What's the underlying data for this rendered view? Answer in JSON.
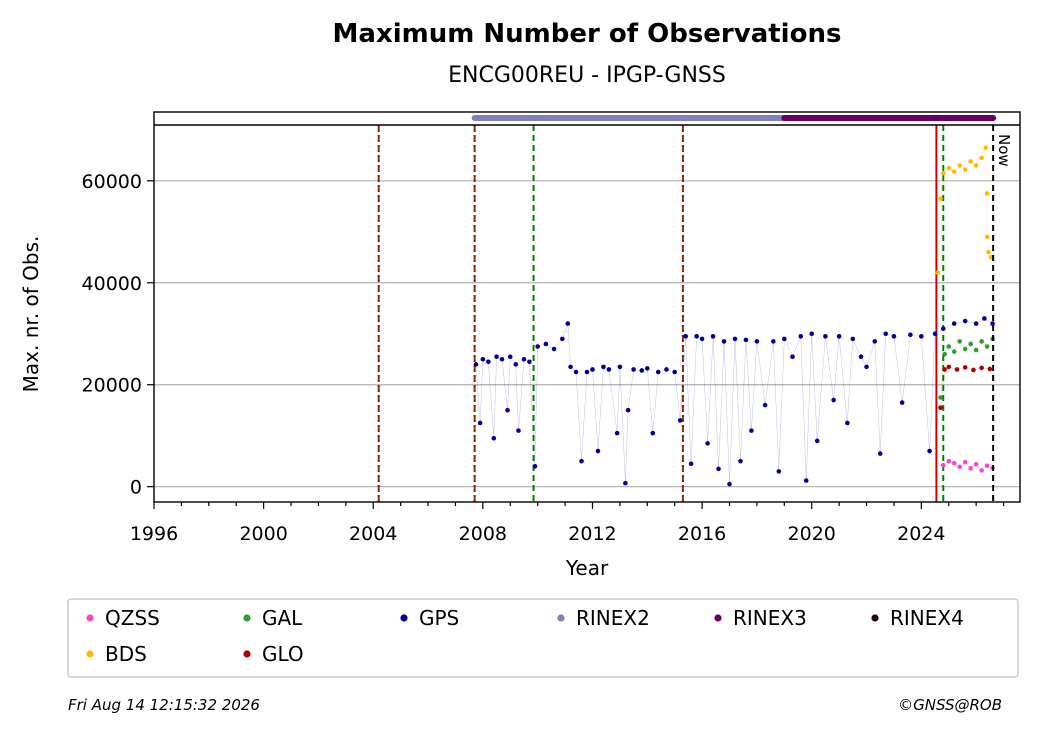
{
  "chart_data": {
    "type": "scatter",
    "title": "Maximum Number of Observations",
    "subtitle": "ENCG00REU - IPGP-GNSS",
    "xlabel": "Year",
    "ylabel": "Max. nr. of Obs.",
    "xlim": [
      1996,
      2027.6
    ],
    "ylim": [
      -3000,
      73500
    ],
    "xticks": [
      1996,
      2000,
      2004,
      2008,
      2012,
      2016,
      2020,
      2024
    ],
    "yticks": [
      0,
      20000,
      40000,
      60000
    ],
    "grid": true,
    "legend_position": "bottom",
    "now_label": "Now",
    "now_x": 2026.62,
    "event_lines": [
      {
        "x": 2004.2,
        "color": "#008000",
        "style": "dashed"
      },
      {
        "x": 2004.2,
        "color": "#cc0000",
        "style": "dotted"
      },
      {
        "x": 2007.7,
        "color": "#008000",
        "style": "dashed"
      },
      {
        "x": 2007.7,
        "color": "#cc0000",
        "style": "dotted"
      },
      {
        "x": 2009.85,
        "color": "#008000",
        "style": "dashed"
      },
      {
        "x": 2015.3,
        "color": "#008000",
        "style": "dashed"
      },
      {
        "x": 2015.3,
        "color": "#cc0000",
        "style": "dotted"
      },
      {
        "x": 2024.55,
        "color": "#cc0000",
        "style": "solid"
      },
      {
        "x": 2024.8,
        "color": "#008000",
        "style": "dashed"
      }
    ],
    "rinex_bars": [
      {
        "name": "RINEX2",
        "start": 2007.7,
        "end": 2019.0,
        "color": "#8080c0"
      },
      {
        "name": "RINEX3",
        "start": 2019.0,
        "end": 2026.62,
        "color": "#660066"
      }
    ],
    "series": [
      {
        "name": "QZSS",
        "color": "#ff44cc",
        "points": [
          [
            2024.8,
            4200
          ],
          [
            2025.0,
            5000
          ],
          [
            2025.2,
            4600
          ],
          [
            2025.4,
            3900
          ],
          [
            2025.6,
            4800
          ],
          [
            2025.8,
            3600
          ],
          [
            2026.0,
            4400
          ],
          [
            2026.2,
            3200
          ],
          [
            2026.4,
            4100
          ],
          [
            2026.6,
            3700
          ]
        ]
      },
      {
        "name": "BDS",
        "color": "#ffbb00",
        "points": [
          [
            2024.6,
            42000
          ],
          [
            2024.7,
            56500
          ],
          [
            2024.8,
            61500
          ],
          [
            2025.0,
            62500
          ],
          [
            2025.2,
            61800
          ],
          [
            2025.4,
            63000
          ],
          [
            2025.6,
            62200
          ],
          [
            2025.8,
            63800
          ],
          [
            2026.0,
            63000
          ],
          [
            2026.2,
            64500
          ],
          [
            2026.35,
            66500
          ],
          [
            2026.4,
            57500
          ],
          [
            2026.4,
            49000
          ],
          [
            2026.45,
            46000
          ],
          [
            2026.55,
            45000
          ]
        ]
      },
      {
        "name": "GAL",
        "color": "#339933",
        "points": [
          [
            2024.7,
            17500
          ],
          [
            2024.85,
            26000
          ],
          [
            2025.0,
            27500
          ],
          [
            2025.2,
            26500
          ],
          [
            2025.4,
            28500
          ],
          [
            2025.6,
            27000
          ],
          [
            2025.8,
            28000
          ],
          [
            2026.0,
            26800
          ],
          [
            2026.2,
            28500
          ],
          [
            2026.4,
            27500
          ],
          [
            2026.6,
            29000
          ]
        ]
      },
      {
        "name": "GLO",
        "color": "#aa0000",
        "points": [
          [
            2024.7,
            15500
          ],
          [
            2024.85,
            23000
          ],
          [
            2025.0,
            23500
          ],
          [
            2025.3,
            23000
          ],
          [
            2025.6,
            23400
          ],
          [
            2025.9,
            22900
          ],
          [
            2026.2,
            23300
          ],
          [
            2026.5,
            23100
          ]
        ]
      },
      {
        "name": "GPS",
        "color": "#000099",
        "points": [
          [
            2007.75,
            24000
          ],
          [
            2007.9,
            12500
          ],
          [
            2008.0,
            25000
          ],
          [
            2008.2,
            24500
          ],
          [
            2008.4,
            9500
          ],
          [
            2008.5,
            25500
          ],
          [
            2008.7,
            25000
          ],
          [
            2008.9,
            15000
          ],
          [
            2009.0,
            25500
          ],
          [
            2009.2,
            24000
          ],
          [
            2009.3,
            11000
          ],
          [
            2009.5,
            25000
          ],
          [
            2009.7,
            24500
          ],
          [
            2009.9,
            4000
          ],
          [
            2010.0,
            27500
          ],
          [
            2010.3,
            28000
          ],
          [
            2010.6,
            27000
          ],
          [
            2010.9,
            29000
          ],
          [
            2011.1,
            32000
          ],
          [
            2011.2,
            23500
          ],
          [
            2011.4,
            22500
          ],
          [
            2011.6,
            5000
          ],
          [
            2011.8,
            22500
          ],
          [
            2012.0,
            23000
          ],
          [
            2012.2,
            7000
          ],
          [
            2012.4,
            23500
          ],
          [
            2012.6,
            23000
          ],
          [
            2012.9,
            10500
          ],
          [
            2013.0,
            23500
          ],
          [
            2013.2,
            700
          ],
          [
            2013.3,
            15000
          ],
          [
            2013.5,
            23000
          ],
          [
            2013.8,
            22800
          ],
          [
            2014.0,
            23200
          ],
          [
            2014.2,
            10500
          ],
          [
            2014.4,
            22500
          ],
          [
            2014.7,
            23000
          ],
          [
            2015.0,
            22500
          ],
          [
            2015.2,
            13000
          ],
          [
            2015.4,
            29500
          ],
          [
            2015.6,
            4500
          ],
          [
            2015.8,
            29500
          ],
          [
            2016.0,
            29000
          ],
          [
            2016.2,
            8500
          ],
          [
            2016.4,
            29500
          ],
          [
            2016.6,
            3500
          ],
          [
            2016.8,
            28500
          ],
          [
            2017.0,
            500
          ],
          [
            2017.2,
            29000
          ],
          [
            2017.4,
            5000
          ],
          [
            2017.6,
            28800
          ],
          [
            2017.8,
            11000
          ],
          [
            2018.0,
            28500
          ],
          [
            2018.3,
            16000
          ],
          [
            2018.6,
            28500
          ],
          [
            2018.8,
            3000
          ],
          [
            2019.0,
            29000
          ],
          [
            2019.3,
            25500
          ],
          [
            2019.6,
            29500
          ],
          [
            2019.8,
            1200
          ],
          [
            2020.0,
            30000
          ],
          [
            2020.2,
            9000
          ],
          [
            2020.5,
            29500
          ],
          [
            2020.8,
            17000
          ],
          [
            2021.0,
            29500
          ],
          [
            2021.3,
            12500
          ],
          [
            2021.5,
            29000
          ],
          [
            2021.8,
            25500
          ],
          [
            2022.0,
            23500
          ],
          [
            2022.3,
            28500
          ],
          [
            2022.5,
            6500
          ],
          [
            2022.7,
            30000
          ],
          [
            2023.0,
            29500
          ],
          [
            2023.3,
            16500
          ],
          [
            2023.6,
            29800
          ],
          [
            2024.0,
            29500
          ],
          [
            2024.3,
            7000
          ],
          [
            2024.5,
            30000
          ],
          [
            2024.8,
            31000
          ],
          [
            2025.2,
            32000
          ],
          [
            2025.6,
            32500
          ],
          [
            2026.0,
            32000
          ],
          [
            2026.3,
            33000
          ],
          [
            2026.6,
            32000
          ]
        ]
      }
    ],
    "legend": [
      {
        "name": "QZSS",
        "color": "#ff44cc"
      },
      {
        "name": "GAL",
        "color": "#339933"
      },
      {
        "name": "GPS",
        "color": "#000099"
      },
      {
        "name": "RINEX2",
        "color": "#8080c0"
      },
      {
        "name": "RINEX3",
        "color": "#660066"
      },
      {
        "name": "RINEX4",
        "color": "#220011"
      },
      {
        "name": "BDS",
        "color": "#ffbb00"
      },
      {
        "name": "GLO",
        "color": "#aa0000"
      }
    ]
  },
  "footer": {
    "timestamp": "Fri Aug 14 12:15:32 2026",
    "credit": "©GNSS@ROB"
  }
}
